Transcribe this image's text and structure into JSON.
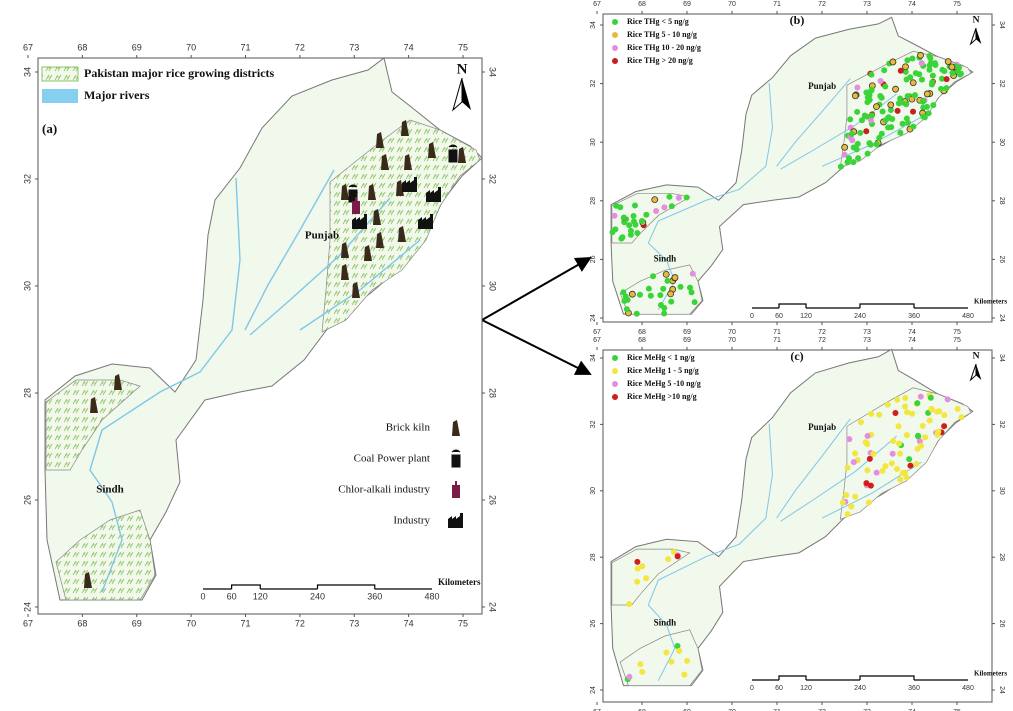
{
  "panels": [
    {
      "label": "(a)",
      "north": "N",
      "legend": [
        {
          "text": "Pakistan major rice growing districts"
        },
        {
          "text": "Major rivers"
        }
      ],
      "regions": [
        "Punjab",
        "Sindh"
      ],
      "facilities": [
        "Brick kiln",
        "Coal Power plant",
        "Chlor-alkali industry",
        "Industry"
      ],
      "scale_unit": "Kilometers",
      "scale": [
        0,
        60,
        120,
        240,
        360,
        480
      ],
      "lon_ticks": [
        67,
        68,
        69,
        70,
        71,
        72,
        73,
        74,
        75
      ],
      "lat_ticks": [
        24,
        26,
        28,
        30,
        32,
        34
      ]
    },
    {
      "label": "(b)",
      "north": "N",
      "legend": [
        {
          "text": "Rice THg < 5 ng/g",
          "color": "#3ad43a"
        },
        {
          "text": "Rice THg 5 - 10 ng/g",
          "color": "#e8b93a"
        },
        {
          "text": "Rice THg 10 - 20 ng/g",
          "color": "#e48ee0"
        },
        {
          "text": "Rice THg > 20 ng/g",
          "color": "#c81e1e"
        }
      ],
      "regions": [
        "Punjab",
        "Sindh"
      ],
      "scale_unit": "Kilometers",
      "scale": [
        0,
        60,
        120,
        240,
        360,
        480
      ],
      "lon_ticks": [
        67,
        68,
        69,
        70,
        71,
        72,
        73,
        74,
        75
      ],
      "lat_ticks": [
        24,
        26,
        28,
        30,
        32,
        34
      ]
    },
    {
      "label": "(c)",
      "north": "N",
      "legend": [
        {
          "text": "Rice MeHg < 1 ng/g",
          "color": "#3ad43a"
        },
        {
          "text": "Rice MeHg 1 - 5 ng/g",
          "color": "#f2e640"
        },
        {
          "text": "Rice MeHg 5 -10 ng/g",
          "color": "#e48ee0"
        },
        {
          "text": "Rice MeHg >10 ng/g",
          "color": "#d01e1a"
        }
      ],
      "regions": [
        "Punjab",
        "Sindh"
      ],
      "scale_unit": "Kilometers",
      "scale": [
        0,
        60,
        120,
        240,
        360,
        480
      ],
      "lon_ticks": [
        67,
        68,
        69,
        70,
        71,
        72,
        73,
        74,
        75
      ],
      "lat_ticks": [
        24,
        26,
        28,
        30,
        32,
        34
      ]
    }
  ]
}
